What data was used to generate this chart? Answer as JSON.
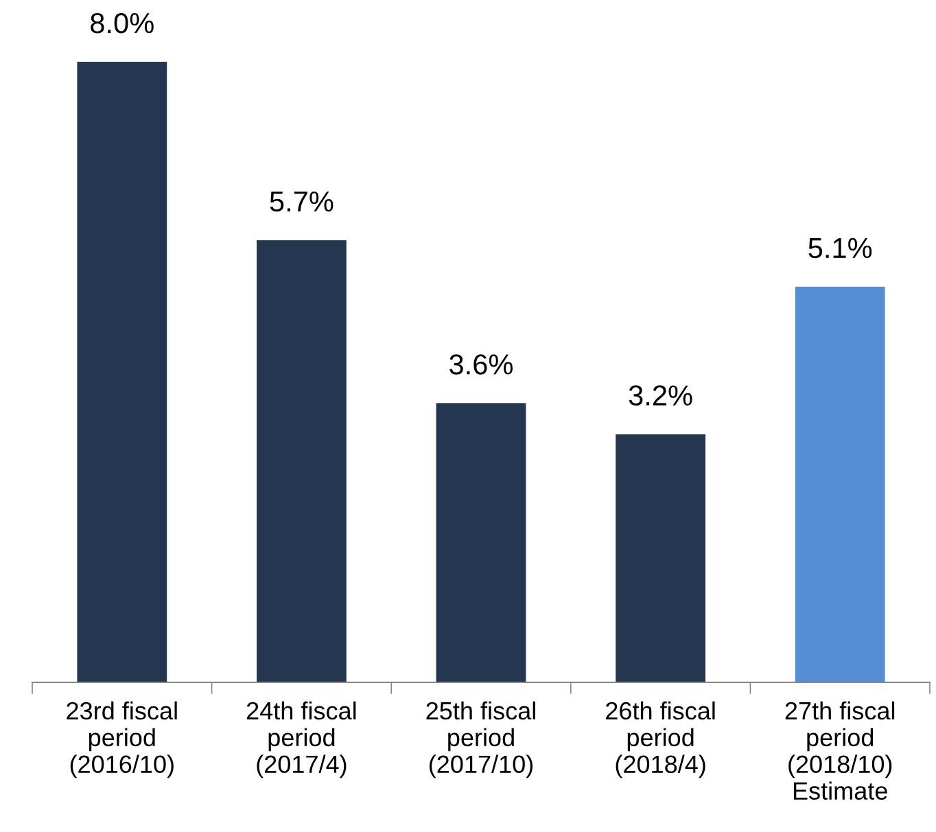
{
  "chart_data": {
    "type": "bar",
    "categories": [
      "23rd fiscal\nperiod\n(2016/10)",
      "24th fiscal\nperiod\n(2017/4)",
      "25th fiscal\nperiod\n(2017/10)",
      "26th fiscal\nperiod\n(2018/4)",
      "27th fiscal\nperiod\n(2018/10)\nEstimate"
    ],
    "values": [
      8.0,
      5.7,
      3.6,
      3.2,
      5.1
    ],
    "colors": [
      "#243650",
      "#243650",
      "#243650",
      "#243650",
      "#558ed5"
    ],
    "value_labels": [
      "8.0%",
      "5.7%",
      "3.6%",
      "3.2%",
      "5.1%"
    ],
    "grid": false,
    "legend": false
  }
}
